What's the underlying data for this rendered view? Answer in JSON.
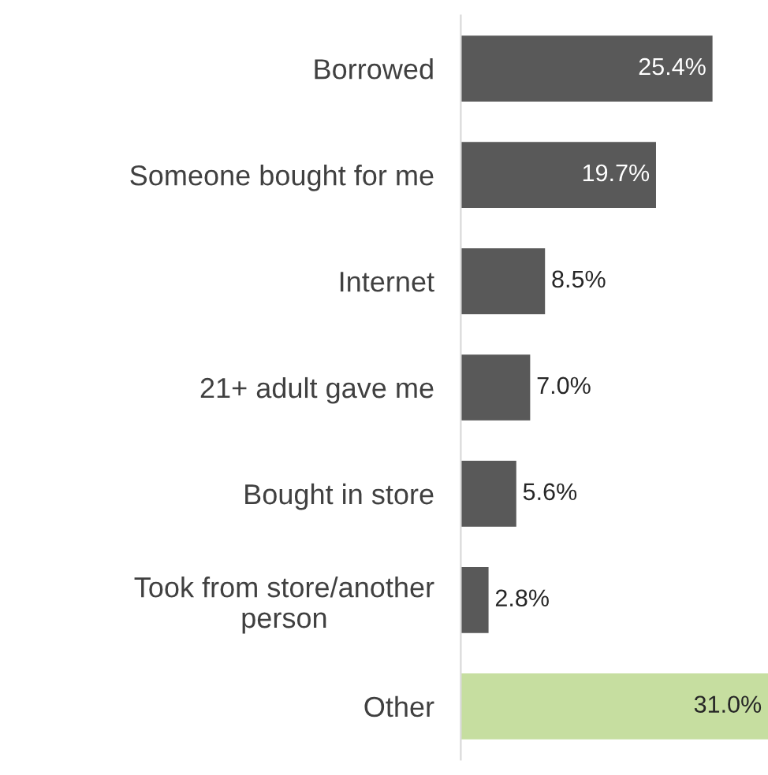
{
  "chart_data": {
    "type": "bar",
    "orientation": "horizontal",
    "categories": [
      "Borrowed",
      "Someone bought for me",
      "Internet",
      "21+ adult gave me",
      "Bought in store",
      "Took from store/another\nperson",
      "Other"
    ],
    "values": [
      25.4,
      19.7,
      8.5,
      7.0,
      5.6,
      2.8,
      31.0
    ],
    "colors": [
      "#595959",
      "#595959",
      "#595959",
      "#595959",
      "#595959",
      "#595959",
      "#c6dea0"
    ],
    "value_labels": [
      "25.4%",
      "19.7%",
      "8.5%",
      "7.0%",
      "5.6%",
      "2.8%",
      "31.0%"
    ],
    "tick_labels": "y",
    "grid": false,
    "legend": false
  }
}
